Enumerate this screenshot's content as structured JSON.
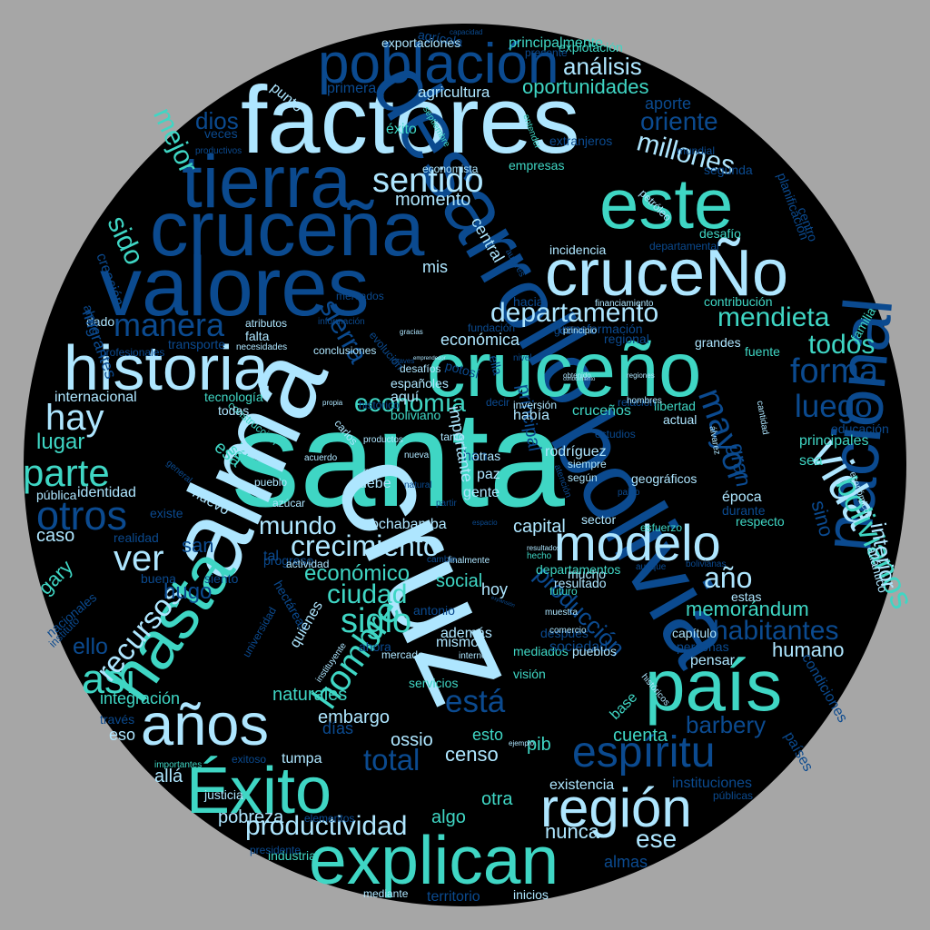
{
  "colors": {
    "background": "#a6a6a6",
    "circle": "#000000",
    "light": "#aee6ff",
    "teal": "#3fd6c4",
    "blue": "#0b4a8f",
    "white": "#e8f6ff"
  },
  "words": [
    {
      "t": "santa",
      "c": "teal"
    },
    {
      "t": "alma",
      "c": "light"
    },
    {
      "t": "cruz",
      "c": "light"
    },
    {
      "t": "factores",
      "c": "light"
    },
    {
      "t": "valores",
      "c": "blue"
    },
    {
      "t": "cruceña",
      "c": "blue"
    },
    {
      "t": "desarrollo",
      "c": "blue"
    },
    {
      "t": "bolivia",
      "c": "blue"
    },
    {
      "t": "cruceño",
      "c": "teal"
    },
    {
      "t": "cruceÑo",
      "c": "light"
    },
    {
      "t": "este",
      "c": "teal"
    },
    {
      "t": "tierra",
      "c": "blue"
    },
    {
      "t": "historia",
      "c": "light"
    },
    {
      "t": "país",
      "c": "teal"
    },
    {
      "t": "explican",
      "c": "teal"
    },
    {
      "t": "nacional",
      "c": "blue"
    },
    {
      "t": "población",
      "c": "blue"
    },
    {
      "t": "Éxito",
      "c": "teal"
    },
    {
      "t": "años",
      "c": "light"
    },
    {
      "t": "hasta",
      "c": "teal"
    },
    {
      "t": "región",
      "c": "light"
    },
    {
      "t": "modelo",
      "c": "light"
    },
    {
      "t": "espíritu",
      "c": "blue"
    },
    {
      "t": "otros",
      "c": "blue"
    },
    {
      "t": "parte",
      "c": "teal"
    },
    {
      "t": "hay",
      "c": "light"
    },
    {
      "t": "ver",
      "c": "light"
    },
    {
      "t": "así",
      "c": "teal"
    },
    {
      "t": "sentido",
      "c": "light"
    },
    {
      "t": "departamento",
      "c": "light"
    },
    {
      "t": "vida",
      "c": "light"
    },
    {
      "t": "hombre",
      "c": "teal"
    },
    {
      "t": "siglo",
      "c": "teal"
    },
    {
      "t": "forma",
      "c": "blue"
    },
    {
      "t": "luego",
      "c": "blue"
    },
    {
      "t": "todos",
      "c": "teal"
    },
    {
      "t": "mendieta",
      "c": "teal"
    },
    {
      "t": "manera",
      "c": "blue"
    },
    {
      "t": "crecimiento",
      "c": "light"
    },
    {
      "t": "ciudad",
      "c": "teal"
    },
    {
      "t": "mundo",
      "c": "light"
    },
    {
      "t": "económico",
      "c": "teal"
    },
    {
      "t": "productividad",
      "c": "light"
    },
    {
      "t": "mayor",
      "c": "blue"
    },
    {
      "t": "bolivianos",
      "c": "teal"
    },
    {
      "t": "economía",
      "c": "teal"
    },
    {
      "t": "está",
      "c": "blue"
    },
    {
      "t": "total",
      "c": "blue"
    },
    {
      "t": "año",
      "c": "light"
    },
    {
      "t": "recursos",
      "c": "light"
    },
    {
      "t": "habitantes",
      "c": "blue"
    },
    {
      "t": "millones",
      "c": "light"
    },
    {
      "t": "oriente",
      "c": "blue"
    },
    {
      "t": "sierra",
      "c": "blue"
    },
    {
      "t": "análisis",
      "c": "light"
    },
    {
      "t": "oportunidades",
      "c": "teal"
    },
    {
      "t": "agricultura",
      "c": "light"
    },
    {
      "t": "momento",
      "c": "light"
    },
    {
      "t": "humano",
      "c": "light"
    },
    {
      "t": "memorándum",
      "c": "teal"
    },
    {
      "t": "barbery",
      "c": "blue"
    },
    {
      "t": "cuenta",
      "c": "teal"
    },
    {
      "t": "censo",
      "c": "light"
    },
    {
      "t": "ese",
      "c": "light"
    },
    {
      "t": "nunca",
      "c": "light"
    },
    {
      "t": "algo",
      "c": "teal"
    },
    {
      "t": "pobreza",
      "c": "light"
    },
    {
      "t": "otra",
      "c": "teal"
    },
    {
      "t": "interior",
      "c": "light"
    },
    {
      "t": "sido",
      "c": "teal"
    },
    {
      "t": "mejor",
      "c": "teal"
    },
    {
      "t": "dios",
      "c": "blue"
    },
    {
      "t": "lugar",
      "c": "teal"
    },
    {
      "t": "caso",
      "c": "light"
    },
    {
      "t": "naturales",
      "c": "teal"
    },
    {
      "t": "embargo",
      "c": "light"
    },
    {
      "t": "producción",
      "c": "blue"
    },
    {
      "t": "capital",
      "c": "light"
    },
    {
      "t": "cochabamba",
      "c": "light"
    },
    {
      "t": "social",
      "c": "teal"
    },
    {
      "t": "ossio",
      "c": "light"
    },
    {
      "t": "días",
      "c": "blue"
    },
    {
      "t": "esto",
      "c": "teal"
    },
    {
      "t": "pib",
      "c": "teal"
    },
    {
      "t": "allá",
      "c": "light"
    },
    {
      "t": "ello",
      "c": "blue"
    },
    {
      "t": "hugo",
      "c": "blue"
    },
    {
      "t": "gary",
      "c": "teal"
    },
    {
      "t": "san",
      "c": "blue"
    },
    {
      "t": "sino",
      "c": "blue"
    },
    {
      "t": "gran",
      "c": "blue"
    },
    {
      "t": "época",
      "c": "light"
    },
    {
      "t": "rodríguez",
      "c": "light"
    },
    {
      "t": "existencia",
      "c": "light"
    },
    {
      "t": "integración",
      "c": "teal"
    },
    {
      "t": "económica",
      "c": "light"
    },
    {
      "t": "internacional",
      "c": "light"
    },
    {
      "t": "mis",
      "c": "light"
    },
    {
      "t": "central",
      "c": "light"
    },
    {
      "t": "punto",
      "c": "light"
    },
    {
      "t": "primera",
      "c": "blue"
    },
    {
      "t": "agrícola",
      "c": "blue"
    },
    {
      "t": "aporte",
      "c": "blue"
    },
    {
      "t": "éxito",
      "c": "teal"
    },
    {
      "t": "veces",
      "c": "blue"
    },
    {
      "t": "extranjeros",
      "c": "blue"
    },
    {
      "t": "empresas",
      "c": "teal"
    },
    {
      "t": "economista",
      "c": "light"
    },
    {
      "t": "segunda",
      "c": "blue"
    },
    {
      "t": "planificación",
      "c": "blue"
    },
    {
      "t": "centro",
      "c": "blue"
    },
    {
      "t": "desafío",
      "c": "teal"
    },
    {
      "t": "departamental",
      "c": "blue"
    },
    {
      "t": "incidencia",
      "c": "light"
    },
    {
      "t": "contribución",
      "c": "teal"
    },
    {
      "t": "grandes",
      "c": "light"
    },
    {
      "t": "fuente",
      "c": "teal"
    },
    {
      "t": "familia",
      "c": "teal"
    },
    {
      "t": "regional",
      "c": "blue"
    },
    {
      "t": "cruceños",
      "c": "teal"
    },
    {
      "t": "libertad",
      "c": "teal"
    },
    {
      "t": "actual",
      "c": "light"
    },
    {
      "t": "principales",
      "c": "teal"
    },
    {
      "t": "educación",
      "c": "blue"
    },
    {
      "t": "sea",
      "c": "teal"
    },
    {
      "t": "respecto",
      "c": "teal"
    },
    {
      "t": "durante",
      "c": "blue"
    },
    {
      "t": "estas",
      "c": "light"
    },
    {
      "t": "capítulo",
      "c": "light"
    },
    {
      "t": "personas",
      "c": "blue"
    },
    {
      "t": "pensar",
      "c": "light"
    },
    {
      "t": "instituciones",
      "c": "blue"
    },
    {
      "t": "públicas",
      "c": "blue"
    },
    {
      "t": "condiciones",
      "c": "blue"
    },
    {
      "t": "países",
      "c": "blue"
    },
    {
      "t": "almas",
      "c": "blue"
    },
    {
      "t": "inicios",
      "c": "light"
    },
    {
      "t": "territorio",
      "c": "blue"
    },
    {
      "t": "mediante",
      "c": "light"
    },
    {
      "t": "industria",
      "c": "teal"
    },
    {
      "t": "presidente",
      "c": "blue"
    },
    {
      "t": "justicia",
      "c": "light"
    },
    {
      "t": "tumpa",
      "c": "light"
    },
    {
      "t": "exitoso",
      "c": "blue"
    },
    {
      "t": "través",
      "c": "blue"
    },
    {
      "t": "eso",
      "c": "light"
    },
    {
      "t": "nacionales",
      "c": "blue"
    },
    {
      "t": "instituto",
      "c": "blue"
    },
    {
      "t": "buena",
      "c": "blue"
    },
    {
      "t": "realidad",
      "c": "blue"
    },
    {
      "t": "pública",
      "c": "light"
    },
    {
      "t": "identidad",
      "c": "light"
    },
    {
      "t": "nuevo",
      "c": "light"
    },
    {
      "t": "existe",
      "c": "blue"
    },
    {
      "t": "tal",
      "c": "blue"
    },
    {
      "t": "siento",
      "c": "blue"
    },
    {
      "t": "hectáreas",
      "c": "blue"
    },
    {
      "t": "quienes",
      "c": "light"
    },
    {
      "t": "universidad",
      "c": "blue"
    },
    {
      "t": "mediados",
      "c": "teal"
    },
    {
      "t": "sociedad",
      "c": "blue"
    },
    {
      "t": "pueblos",
      "c": "light"
    },
    {
      "t": "servicios",
      "c": "teal"
    },
    {
      "t": "además",
      "c": "light"
    },
    {
      "t": "mismo",
      "c": "light"
    },
    {
      "t": "visión",
      "c": "teal"
    },
    {
      "t": "base",
      "c": "teal"
    },
    {
      "t": "ahora",
      "c": "blue"
    },
    {
      "t": "mercado",
      "c": "light"
    },
    {
      "t": "hoy",
      "c": "light"
    },
    {
      "t": "gente",
      "c": "light"
    },
    {
      "t": "paz",
      "c": "light"
    },
    {
      "t": "debe",
      "c": "light"
    },
    {
      "t": "han",
      "c": "blue"
    },
    {
      "t": "importante",
      "c": "light"
    },
    {
      "t": "principal",
      "c": "blue"
    },
    {
      "t": "otras",
      "c": "light"
    },
    {
      "t": "tanto",
      "c": "light"
    },
    {
      "t": "siempre",
      "c": "light"
    },
    {
      "t": "según",
      "c": "light"
    },
    {
      "t": "sector",
      "c": "light"
    },
    {
      "t": "progreso",
      "c": "blue"
    },
    {
      "t": "actividad",
      "c": "light"
    },
    {
      "t": "resultado",
      "c": "light"
    },
    {
      "t": "futuro",
      "c": "teal"
    },
    {
      "t": "mucho",
      "c": "light"
    },
    {
      "t": "departamentos",
      "c": "teal"
    },
    {
      "t": "después",
      "c": "blue"
    },
    {
      "t": "españoles",
      "c": "light"
    },
    {
      "t": "aquí",
      "c": "light"
    },
    {
      "t": "había",
      "c": "light"
    },
    {
      "t": "boliviano",
      "c": "teal"
    },
    {
      "t": "desafíos",
      "c": "light"
    },
    {
      "t": "potosí",
      "c": "blue"
    },
    {
      "t": "ella",
      "c": "blue"
    },
    {
      "t": "fundación",
      "c": "blue"
    },
    {
      "t": "hacia",
      "c": "blue"
    },
    {
      "t": "transformación",
      "c": "blue"
    },
    {
      "t": "gobierno",
      "c": "blue"
    },
    {
      "t": "financiamiento",
      "c": "light"
    },
    {
      "t": "mercados",
      "c": "blue"
    },
    {
      "t": "tecnología",
      "c": "teal"
    },
    {
      "t": "construcción",
      "c": "teal"
    },
    {
      "t": "esa",
      "c": "teal"
    },
    {
      "t": "sólo",
      "c": "teal"
    },
    {
      "t": "todas",
      "c": "light"
    },
    {
      "t": "transporte",
      "c": "blue"
    },
    {
      "t": "atributos",
      "c": "light"
    },
    {
      "t": "falta",
      "c": "light"
    },
    {
      "t": "dado",
      "c": "light"
    },
    {
      "t": "profesionales",
      "c": "blue"
    },
    {
      "t": "migrantes",
      "c": "blue"
    },
    {
      "t": "creación",
      "c": "blue"
    },
    {
      "t": "alpire",
      "c": "blue"
    },
    {
      "t": "productivos",
      "c": "blue"
    },
    {
      "t": "septiembre",
      "c": "teal"
    },
    {
      "t": "mundial",
      "c": "blue"
    },
    {
      "t": "carlos",
      "c": "light"
    },
    {
      "t": "general",
      "c": "blue"
    },
    {
      "t": "azúcar",
      "c": "light"
    },
    {
      "t": "pueblo",
      "c": "light"
    },
    {
      "t": "inversión",
      "c": "light"
    },
    {
      "t": "decir",
      "c": "blue"
    },
    {
      "t": "estudios",
      "c": "blue"
    },
    {
      "t": "relación",
      "c": "blue"
    },
    {
      "t": "hombres",
      "c": "light"
    },
    {
      "t": "geográficos",
      "c": "light"
    },
    {
      "t": "pablo",
      "c": "blue"
    },
    {
      "t": "esfuerzo",
      "c": "teal"
    },
    {
      "t": "históricos",
      "c": "light"
    },
    {
      "t": "exportaciones",
      "c": "light"
    },
    {
      "t": "principalmente",
      "c": "teal"
    },
    {
      "t": "explotación",
      "c": "teal"
    },
    {
      "t": "presente",
      "c": "blue"
    },
    {
      "t": "capacidad",
      "c": "blue"
    },
    {
      "t": "autores",
      "c": "blue"
    },
    {
      "t": "petróleo",
      "c": "light"
    },
    {
      "t": "álvarez",
      "c": "light"
    },
    {
      "t": "atención",
      "c": "blue"
    },
    {
      "t": "económicos",
      "c": "light"
    },
    {
      "t": "bolivianas",
      "c": "blue"
    },
    {
      "t": "atlántico",
      "c": "light"
    },
    {
      "t": "aunque",
      "c": "blue"
    },
    {
      "t": "muestra",
      "c": "light"
    },
    {
      "t": "comercio",
      "c": "light"
    },
    {
      "t": "interno",
      "c": "light"
    },
    {
      "t": "productos",
      "c": "light"
    },
    {
      "t": "growth",
      "c": "light"
    },
    {
      "t": "natural",
      "c": "blue"
    },
    {
      "t": "nueva",
      "c": "light"
    },
    {
      "t": "chaves",
      "c": "blue"
    },
    {
      "t": "obtenido",
      "c": "light"
    },
    {
      "t": "regiones",
      "c": "light"
    },
    {
      "t": "cantidad",
      "c": "light"
    },
    {
      "t": "evolución",
      "c": "blue"
    },
    {
      "t": "conclusiones",
      "c": "light"
    },
    {
      "t": "necesidades",
      "c": "light"
    },
    {
      "t": "información",
      "c": "blue"
    },
    {
      "t": "gracias",
      "c": "light"
    },
    {
      "t": "emprendedor",
      "c": "light"
    },
    {
      "t": "finalmente",
      "c": "light"
    },
    {
      "t": "expansión",
      "c": "blue"
    },
    {
      "t": "cambio",
      "c": "blue"
    },
    {
      "t": "hecho",
      "c": "teal"
    },
    {
      "t": "resultados",
      "c": "light"
    },
    {
      "t": "acuerdo",
      "c": "light"
    },
    {
      "t": "ejemplo",
      "c": "light"
    },
    {
      "t": "conocimiento",
      "c": "light"
    },
    {
      "t": "entender",
      "c": "teal"
    },
    {
      "t": "nivel",
      "c": "blue"
    },
    {
      "t": "antonio",
      "c": "blue"
    },
    {
      "t": "instituyente",
      "c": "light"
    },
    {
      "t": "propia",
      "c": "light"
    },
    {
      "t": "partir",
      "c": "blue"
    },
    {
      "t": "espacio",
      "c": "blue"
    },
    {
      "t": "principio",
      "c": "light"
    },
    {
      "t": "importantes",
      "c": "teal"
    },
    {
      "t": "elementos",
      "c": "blue"
    },
    {
      "t": "histórico",
      "c": "blue"
    }
  ]
}
